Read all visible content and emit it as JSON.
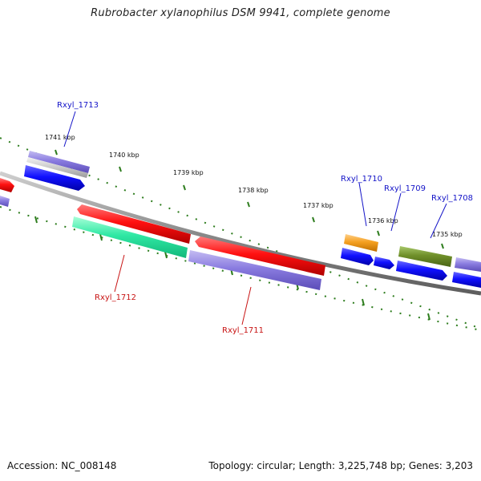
{
  "header": {
    "title": "Rubrobacter xylanophilus DSM 9941, complete genome"
  },
  "footer": {
    "accession": "Accession: NC_008148",
    "stats": "Topology: circular; Length: 3,225,748 bp; Genes: 3,203"
  },
  "colors": {
    "backbone": "#8a8a8a",
    "tick": "#2e7d1e",
    "label_forward": "#1414c8",
    "label_reverse": "#c81414",
    "red": "#e60000",
    "blue": "#0000e6",
    "purple": "#7f70d8",
    "green": "#22e39b",
    "orange": "#f39a12",
    "olive": "#6b8e23"
  },
  "ticks": [
    {
      "label": "1741 kbp"
    },
    {
      "label": "1740 kbp"
    },
    {
      "label": "1739 kbp"
    },
    {
      "label": "1738 kbp"
    },
    {
      "label": "1737 kbp"
    },
    {
      "label": "1736 kbp"
    },
    {
      "label": "1735 kbp"
    }
  ],
  "genes": [
    {
      "name": "Rxyl_1713",
      "strand": "reverse",
      "color": "purple",
      "labeled": true
    },
    {
      "name": "Rxyl_1712",
      "strand": "forward",
      "color": "green",
      "labeled": true
    },
    {
      "name": "Rxyl_1711",
      "strand": "forward",
      "color": "purple",
      "labeled": true
    },
    {
      "name": "Rxyl_1710",
      "strand": "reverse",
      "color": "orange",
      "labeled": true
    },
    {
      "name": "Rxyl_1709",
      "strand": "reverse",
      "color": "blue",
      "labeled": true
    },
    {
      "name": "Rxyl_1708",
      "strand": "reverse",
      "color": "olive",
      "labeled": true
    }
  ]
}
